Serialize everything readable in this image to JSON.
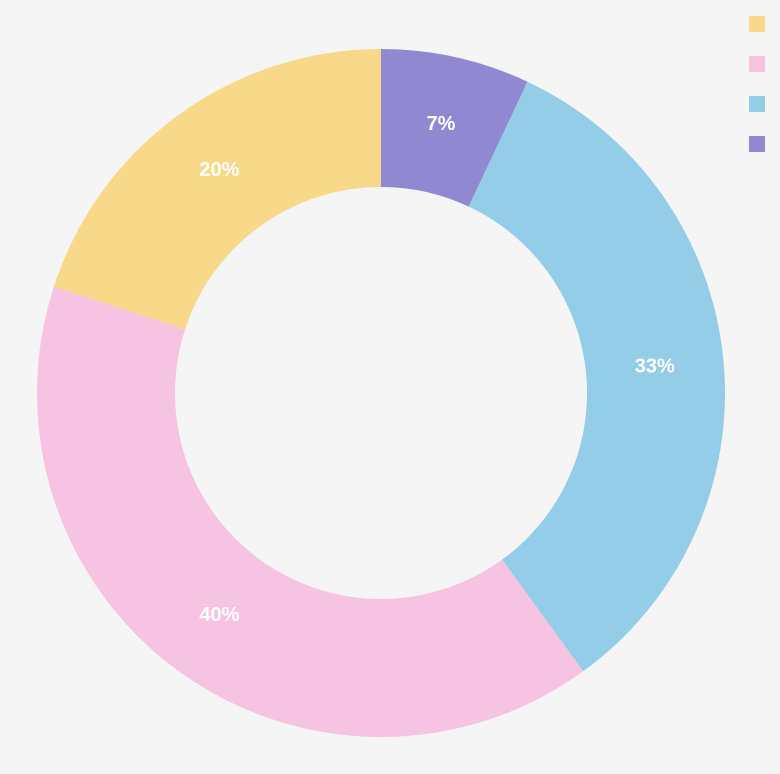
{
  "chart_data": {
    "type": "pie",
    "variant": "donut",
    "start": "top",
    "direction": "clockwise",
    "legend_position": "top-right",
    "legend_labels_visible": false,
    "slices": [
      {
        "label": "",
        "value": 7,
        "display": "7%",
        "color": "#9089d1"
      },
      {
        "label": "",
        "value": 33,
        "display": "33%",
        "color": "#94cde7"
      },
      {
        "label": "",
        "value": 40,
        "display": "40%",
        "color": "#f6c3e3"
      },
      {
        "label": "",
        "value": 20,
        "display": "20%",
        "color": "#f8d98a"
      }
    ],
    "legend_order": [
      3,
      2,
      1,
      0
    ]
  },
  "colors": {
    "background": "#f5f5f5",
    "label_text": "#ffffff"
  }
}
